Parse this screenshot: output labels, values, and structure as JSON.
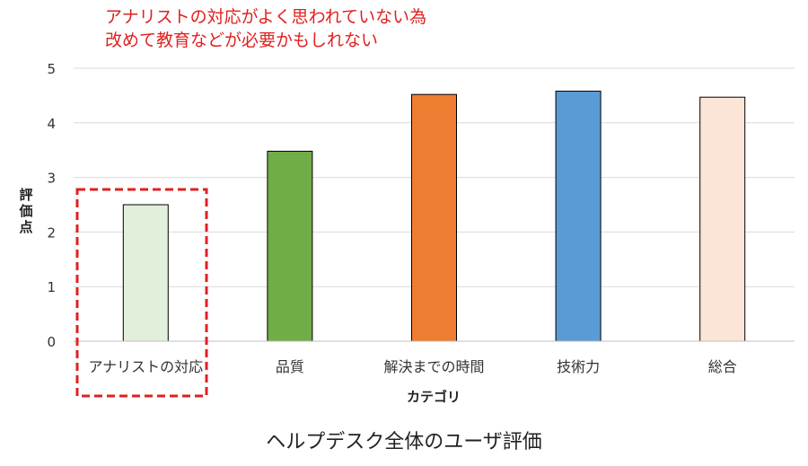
{
  "annotation": {
    "line1": "アナリストの対応がよく思われていない為",
    "line2": "改めて教育などが必要かもしれない",
    "color": "#e02020"
  },
  "caption": "ヘルプデスク全体のユーザ評価",
  "chart_data": {
    "type": "bar",
    "categories": [
      "アナリストの対応",
      "品質",
      "解決までの時間",
      "技術力",
      "総合"
    ],
    "values": [
      2.5,
      3.48,
      4.52,
      4.58,
      4.47
    ],
    "colors": [
      "#e2efda",
      "#70ad47",
      "#ed7d31",
      "#5b9bd5",
      "#fbe5d6"
    ],
    "xlabel": "カテゴリ",
    "ylabel": "評価点",
    "ylim": [
      0,
      5
    ],
    "yticks": [
      0,
      1,
      2,
      3,
      4,
      5
    ],
    "grid": true,
    "highlight_index": 0,
    "highlight_color": "#e02020"
  }
}
